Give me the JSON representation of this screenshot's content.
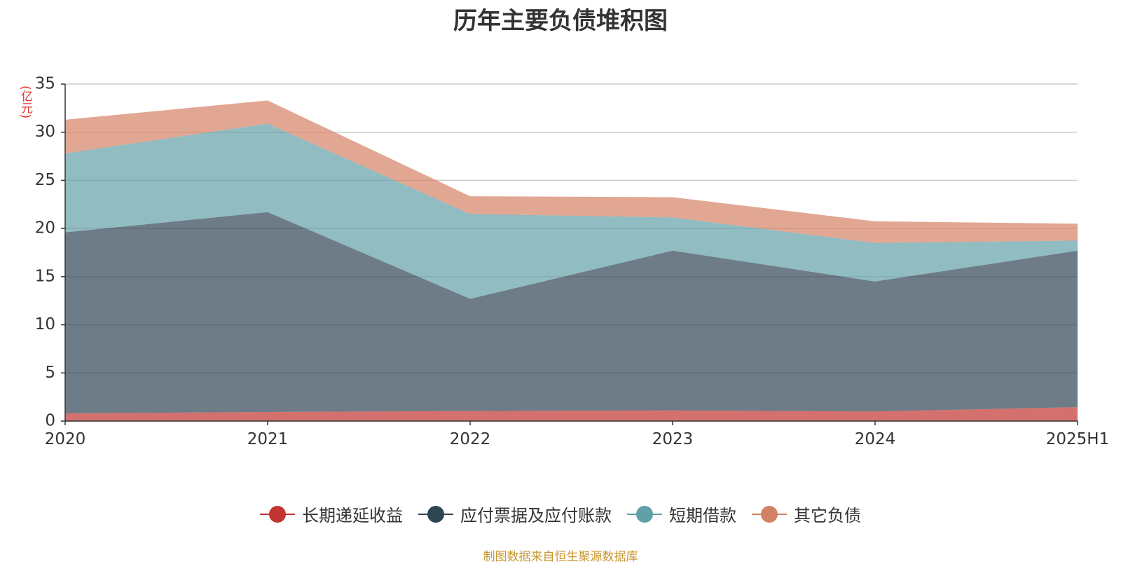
{
  "chart_data": {
    "type": "area",
    "stacked": true,
    "title": "历年主要负债堆积图",
    "unit_label": "(亿元)",
    "categories": [
      "2020",
      "2021",
      "2022",
      "2023",
      "2024",
      "2025H1"
    ],
    "ylim": [
      0,
      35
    ],
    "yticks": [
      0,
      5,
      10,
      15,
      20,
      25,
      30,
      35
    ],
    "grid": true,
    "legend_position": "bottom",
    "series": [
      {
        "name": "长期递延收益",
        "color": "#c23531",
        "values": [
          0.8,
          0.95,
          1.05,
          1.1,
          1.0,
          1.45
        ]
      },
      {
        "name": "应付票据及应付账款",
        "color": "#2f4554",
        "values": [
          18.8,
          20.75,
          11.65,
          16.6,
          13.5,
          16.25
        ]
      },
      {
        "name": "短期借款",
        "color": "#61a0a8",
        "values": [
          8.2,
          9.2,
          8.8,
          3.45,
          4.0,
          1.05
        ]
      },
      {
        "name": "其它负债",
        "color": "#d48265",
        "values": [
          3.5,
          2.4,
          1.85,
          2.1,
          2.25,
          1.75
        ]
      }
    ]
  },
  "footer": {
    "source": "制图数据来自恒生聚源数据库"
  }
}
